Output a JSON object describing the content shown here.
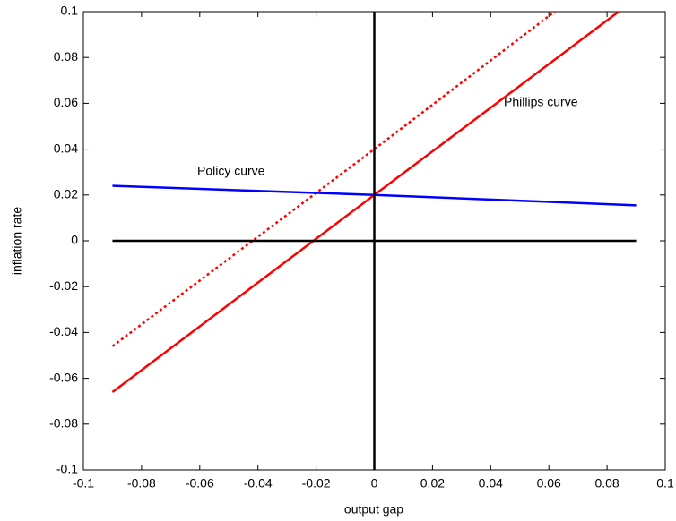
{
  "chart_data": {
    "type": "line",
    "xlabel": "output gap",
    "ylabel": "inflation rate",
    "annotations": [
      "Policy curve",
      "Phillips curve"
    ],
    "xlim": [
      -0.1,
      0.1
    ],
    "ylim": [
      -0.1,
      0.1
    ],
    "xticks": [
      -0.1,
      -0.08,
      -0.06,
      -0.04,
      -0.02,
      0,
      0.02,
      0.04,
      0.06,
      0.08,
      0.1
    ],
    "yticks": [
      -0.1,
      -0.08,
      -0.06,
      -0.04,
      -0.02,
      0,
      0.02,
      0.04,
      0.06,
      0.08,
      0.1
    ],
    "grid": false,
    "series": [
      {
        "color": "#ff0000",
        "dash": false,
        "x": [
          -0.09,
          0,
          0.084
        ],
        "values": [
          -0.066,
          0.02,
          0.1
        ]
      },
      {
        "color": "#ff0000",
        "dash": true,
        "x": [
          -0.09,
          0,
          0.062
        ],
        "values": [
          -0.046,
          0.04,
          0.1
        ]
      },
      {
        "color": "#0000ff",
        "dash": false,
        "x": [
          -0.09,
          0,
          0.09
        ],
        "values": [
          0.024,
          0.02,
          0.0155
        ]
      },
      {
        "color": "#000000",
        "dash": false,
        "x": [
          -0.09,
          0.09
        ],
        "values": [
          0,
          0
        ]
      },
      {
        "color": "#000000",
        "dash": false,
        "x": [
          0,
          0
        ],
        "values": [
          -0.1,
          0.1
        ]
      }
    ]
  }
}
